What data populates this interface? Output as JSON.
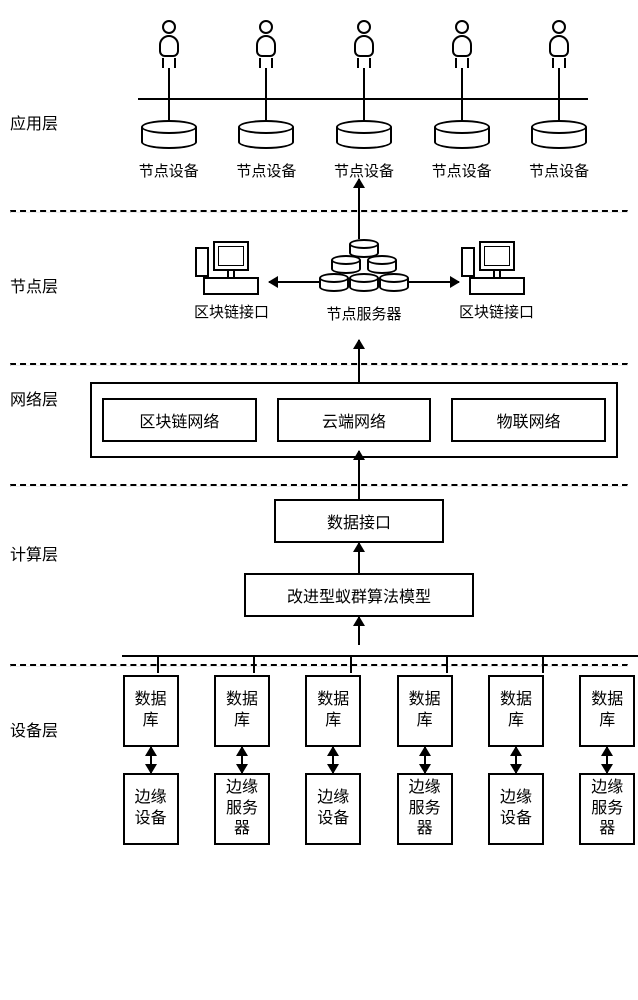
{
  "type": "layered-architecture-diagram",
  "background_color": "#ffffff",
  "stroke_color": "#000000",
  "font_family": "SimSun",
  "layers": {
    "application": {
      "label": "应用层",
      "users_count": 5,
      "devices_count": 5,
      "device_label": "节点设备"
    },
    "node": {
      "label": "节点层",
      "server_label": "节点服务器",
      "interface_left": "区块链接口",
      "interface_right": "区块链接口"
    },
    "network": {
      "label": "网络层",
      "boxes": [
        "区块链网络",
        "云端网络",
        "物联网络"
      ]
    },
    "compute": {
      "label": "计算层",
      "data_interface": "数据接口",
      "algorithm_model": "改进型蚁群算法模型"
    },
    "device": {
      "label": "设备层",
      "columns": [
        {
          "db": "数据库",
          "node": "边缘设备"
        },
        {
          "db": "数据库",
          "node": "边缘服务器"
        },
        {
          "db": "数据库",
          "node": "边缘设备"
        },
        {
          "db": "数据库",
          "node": "边缘服务器"
        },
        {
          "db": "数据库",
          "node": "边缘设备"
        },
        {
          "db": "数据库",
          "node": "边缘服务器"
        }
      ]
    }
  }
}
